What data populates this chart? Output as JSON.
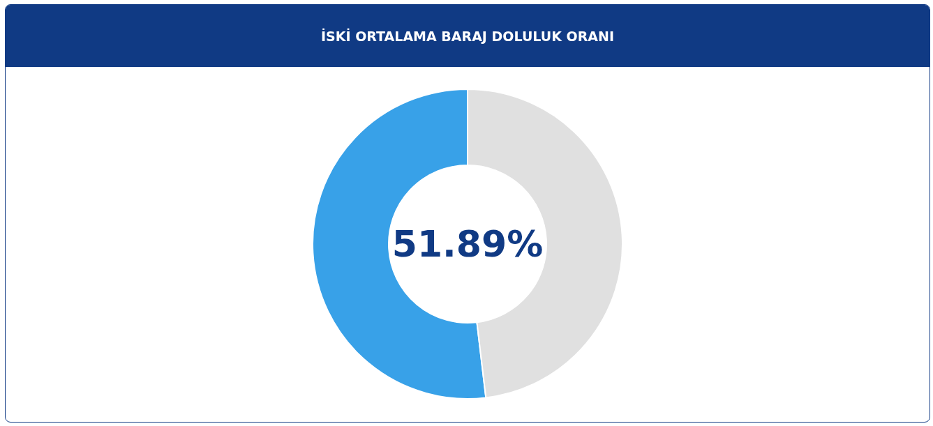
{
  "chart_data": {
    "type": "donut",
    "title": "İSKİ ORTALAMA BARAJ DOLULUK ORANI",
    "categories": [
      null,
      null
    ],
    "values": [
      51.89,
      48.11
    ],
    "colors": [
      "#38a1e8",
      "#e0e0e0"
    ],
    "value_labels": [
      "51.89%",
      null
    ]
  }
}
